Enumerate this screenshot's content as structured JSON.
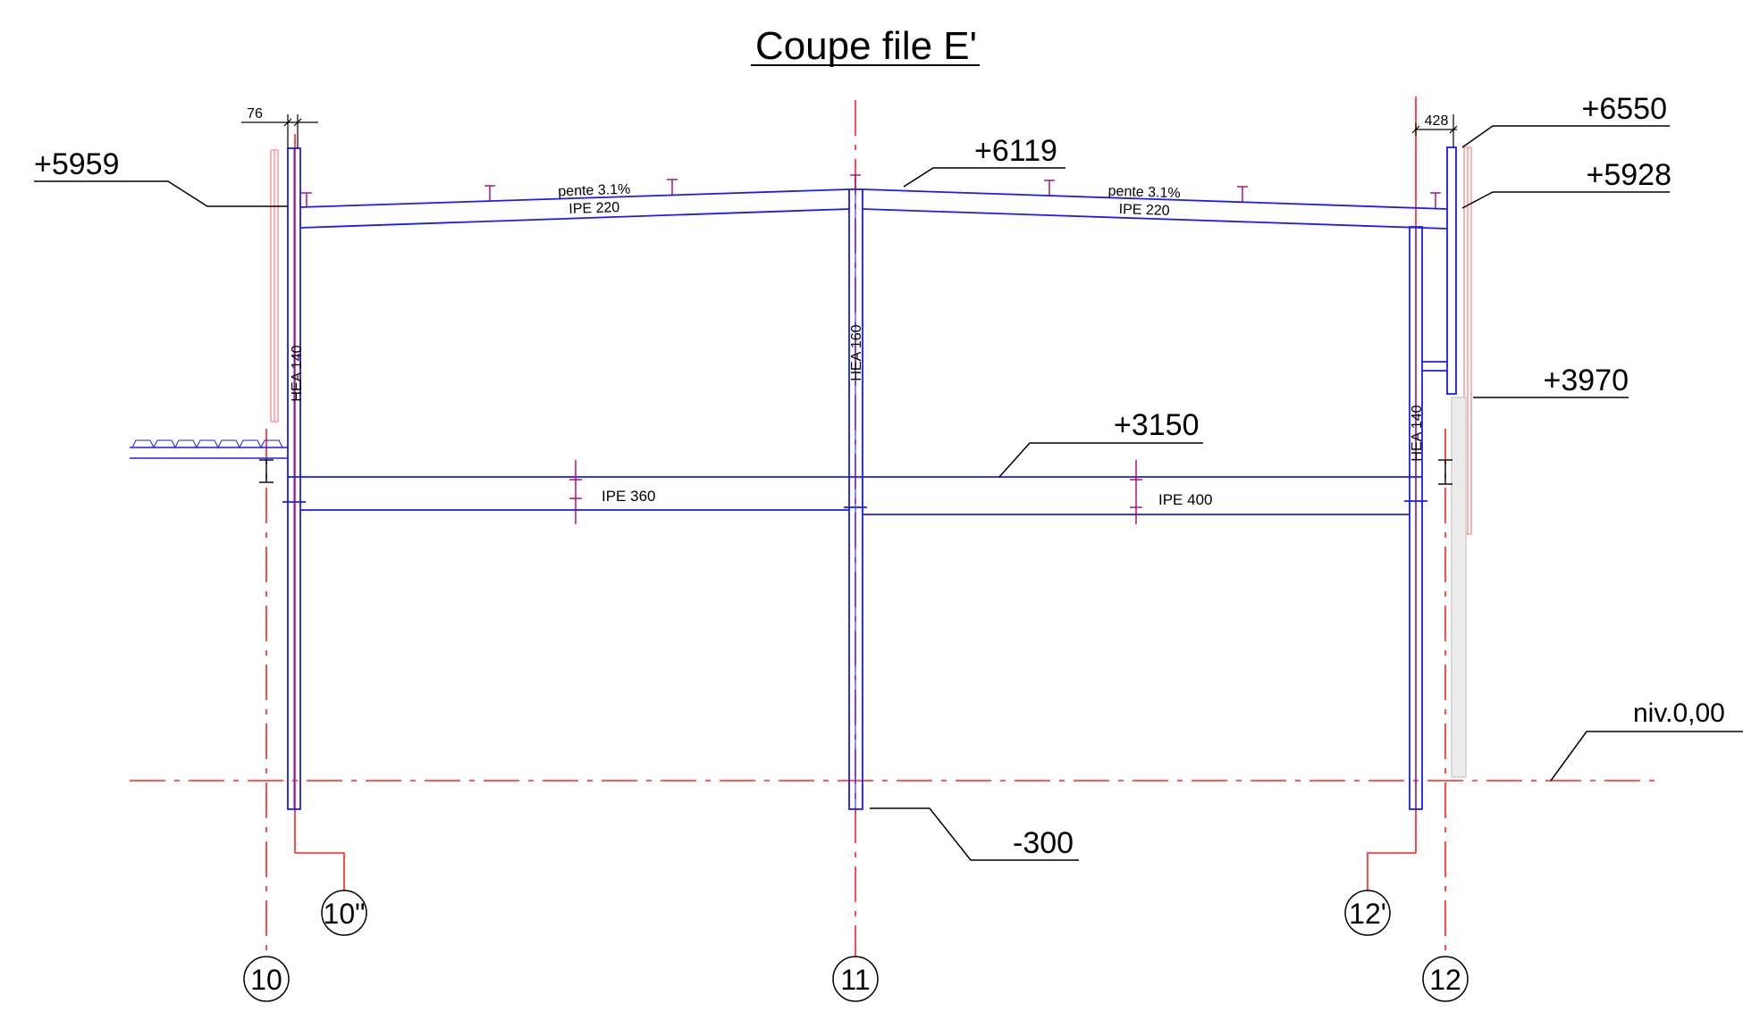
{
  "title": "Coupe file E'",
  "colors": {
    "structure": "#1a1aff",
    "axis": "#ff2020",
    "cladding": "#ff9090",
    "purlin": "#b0006a",
    "leader": "#000000"
  },
  "levels": {
    "left_top": "+5959",
    "ridge": "+6119",
    "right_top": "+6550",
    "right_eave": "+5928",
    "right_bracket": "+3970",
    "floor": "+3150",
    "ground": "niv.0,00",
    "base": "-300"
  },
  "dimensions": {
    "left_offset": "76",
    "right_offset": "428"
  },
  "roof": {
    "left_slope": "pente 3.1%",
    "left_profile": "IPE 220",
    "right_slope": "pente 3.1%",
    "right_profile": "IPE 220"
  },
  "floor_beams": {
    "left_profile": "IPE 360",
    "right_profile": "IPE 400"
  },
  "columns": {
    "left_profile": "HEA 140",
    "middle_profile": "HEA 160",
    "right_profile": "HEA 140"
  },
  "axes": {
    "axis_10": "10",
    "axis_11": "11",
    "axis_12": "12",
    "axis_10b": "10\"",
    "axis_12b": "12'"
  }
}
